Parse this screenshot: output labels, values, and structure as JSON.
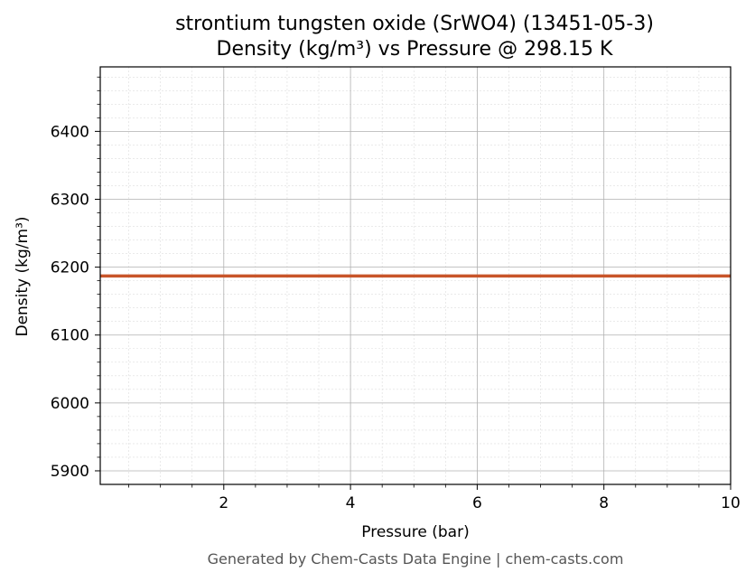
{
  "chart_data": {
    "type": "line",
    "title": "strontium tungsten oxide (SrWO4) (13451-05-3)",
    "subtitle": "Density (kg/m³) vs Pressure @ 298.15 K",
    "xlabel": "Pressure (bar)",
    "ylabel": "Density (kg/m³)",
    "xlim": [
      0.05,
      10
    ],
    "ylim": [
      5880,
      6495
    ],
    "x_ticks": [
      2,
      4,
      6,
      8,
      10
    ],
    "y_ticks": [
      5900,
      6000,
      6100,
      6200,
      6300,
      6400
    ],
    "grid": true,
    "minor_grid": true,
    "series": [
      {
        "color": "#c8552a",
        "x": [
          0.05,
          1,
          2,
          3,
          4,
          5,
          6,
          7,
          8,
          9,
          10
        ],
        "y": [
          6187,
          6187,
          6187,
          6187,
          6187,
          6187,
          6187,
          6187,
          6187,
          6187,
          6187
        ]
      }
    ]
  },
  "footer": "Generated by Chem-Casts Data Engine | chem-casts.com"
}
